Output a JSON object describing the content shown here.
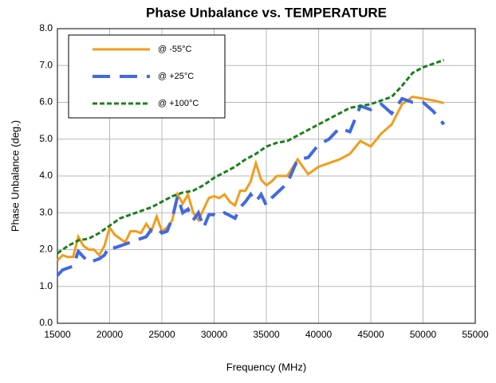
{
  "chart_data": {
    "type": "line",
    "title": "Phase Unbalance vs. TEMPERATURE",
    "xlabel": "Frequency (MHz)",
    "ylabel": "Phase Unbalance (deg.)",
    "xlim": [
      15000,
      55000
    ],
    "xticks": [
      15000,
      20000,
      25000,
      30000,
      35000,
      40000,
      45000,
      50000,
      55000
    ],
    "ylim": [
      0,
      8
    ],
    "yticks": [
      {
        "value": 0,
        "label": "0.0"
      },
      {
        "value": 1,
        "label": "1.0"
      },
      {
        "value": 2,
        "label": "2.0"
      },
      {
        "value": 3,
        "label": "3.0"
      },
      {
        "value": 4,
        "label": "4.0"
      },
      {
        "value": 5,
        "label": "5.0"
      },
      {
        "value": 6,
        "label": "6.0"
      },
      {
        "value": 7,
        "label": "7.0"
      },
      {
        "value": 8,
        "label": "8.0"
      }
    ],
    "grid": true,
    "legend": "upper left",
    "series": [
      {
        "name": "@ -55°C",
        "color": "#f39c1a",
        "dash": "solid",
        "x": [
          15000,
          15500,
          16000,
          16500,
          17000,
          17500,
          18000,
          18500,
          19000,
          19500,
          20000,
          20500,
          21000,
          21500,
          22000,
          22500,
          23000,
          23500,
          24000,
          24500,
          25000,
          25500,
          26000,
          26500,
          27000,
          27500,
          28000,
          28500,
          29000,
          29500,
          30000,
          30500,
          31000,
          31500,
          32000,
          32500,
          33000,
          33500,
          34000,
          34500,
          35000,
          35500,
          36000,
          37000,
          38000,
          39000,
          40000,
          41000,
          42000,
          43000,
          44000,
          45000,
          46000,
          47000,
          48000,
          49000,
          50000,
          51000,
          52000
        ],
        "values": [
          1.7,
          1.85,
          1.8,
          1.8,
          2.35,
          2.1,
          2.0,
          2.0,
          1.85,
          2.1,
          2.6,
          2.4,
          2.3,
          2.2,
          2.5,
          2.5,
          2.45,
          2.7,
          2.5,
          2.9,
          2.5,
          2.6,
          2.8,
          3.5,
          3.25,
          3.5,
          3.0,
          2.8,
          3.1,
          3.4,
          3.45,
          3.4,
          3.5,
          3.3,
          3.2,
          3.6,
          3.6,
          3.85,
          4.35,
          3.9,
          3.75,
          3.85,
          4.0,
          4.0,
          4.45,
          4.05,
          4.25,
          4.35,
          4.45,
          4.6,
          4.95,
          4.8,
          5.15,
          5.4,
          5.95,
          6.15,
          6.1,
          6.05,
          5.98
        ]
      },
      {
        "name": "@ +25°C",
        "color": "#4169e1",
        "dash": "dash",
        "x": [
          15000,
          15500,
          16000,
          16500,
          17000,
          17500,
          18000,
          18500,
          19000,
          19500,
          20000,
          20500,
          21000,
          22000,
          23000,
          23500,
          24000,
          24500,
          25000,
          25500,
          26000,
          26500,
          27000,
          27500,
          28000,
          28500,
          29000,
          29500,
          30000,
          30500,
          31000,
          32000,
          32500,
          33000,
          33500,
          34000,
          34500,
          35000,
          35500,
          37000,
          38000,
          39000,
          40000,
          41000,
          42000,
          43000,
          44000,
          45000,
          46000,
          47000,
          48000,
          49000,
          50000,
          51000,
          52000
        ],
        "values": [
          1.3,
          1.45,
          1.5,
          1.55,
          1.95,
          1.8,
          1.65,
          1.7,
          1.75,
          1.85,
          2.1,
          2.05,
          2.1,
          2.2,
          2.3,
          2.35,
          2.55,
          2.6,
          2.45,
          2.5,
          2.85,
          3.45,
          3.0,
          3.1,
          2.8,
          3.0,
          2.6,
          2.95,
          2.95,
          2.9,
          3.0,
          2.85,
          3.15,
          3.3,
          3.5,
          3.3,
          3.5,
          3.2,
          3.4,
          3.8,
          4.45,
          4.5,
          4.85,
          5.0,
          5.3,
          5.2,
          5.9,
          5.8,
          5.95,
          5.7,
          6.1,
          6.0,
          6.0,
          5.75,
          5.4
        ]
      },
      {
        "name": "@ +100°C",
        "color": "#1a7f1a",
        "dash": "dot",
        "x": [
          15000,
          16000,
          17000,
          18000,
          19000,
          20000,
          21000,
          22000,
          23000,
          24000,
          25000,
          26000,
          27000,
          28000,
          29000,
          30000,
          31000,
          32000,
          33000,
          34000,
          35000,
          36000,
          37000,
          38000,
          39000,
          40000,
          41000,
          42000,
          43000,
          44000,
          45000,
          46000,
          47000,
          48000,
          49000,
          50000,
          51000,
          52000
        ],
        "values": [
          1.9,
          2.1,
          2.25,
          2.3,
          2.45,
          2.65,
          2.85,
          2.95,
          3.05,
          3.15,
          3.3,
          3.45,
          3.55,
          3.6,
          3.75,
          3.95,
          4.1,
          4.25,
          4.45,
          4.6,
          4.8,
          4.9,
          4.95,
          5.1,
          5.25,
          5.4,
          5.55,
          5.7,
          5.85,
          5.9,
          5.95,
          6.05,
          6.15,
          6.45,
          6.8,
          6.95,
          7.05,
          7.15
        ]
      }
    ]
  }
}
